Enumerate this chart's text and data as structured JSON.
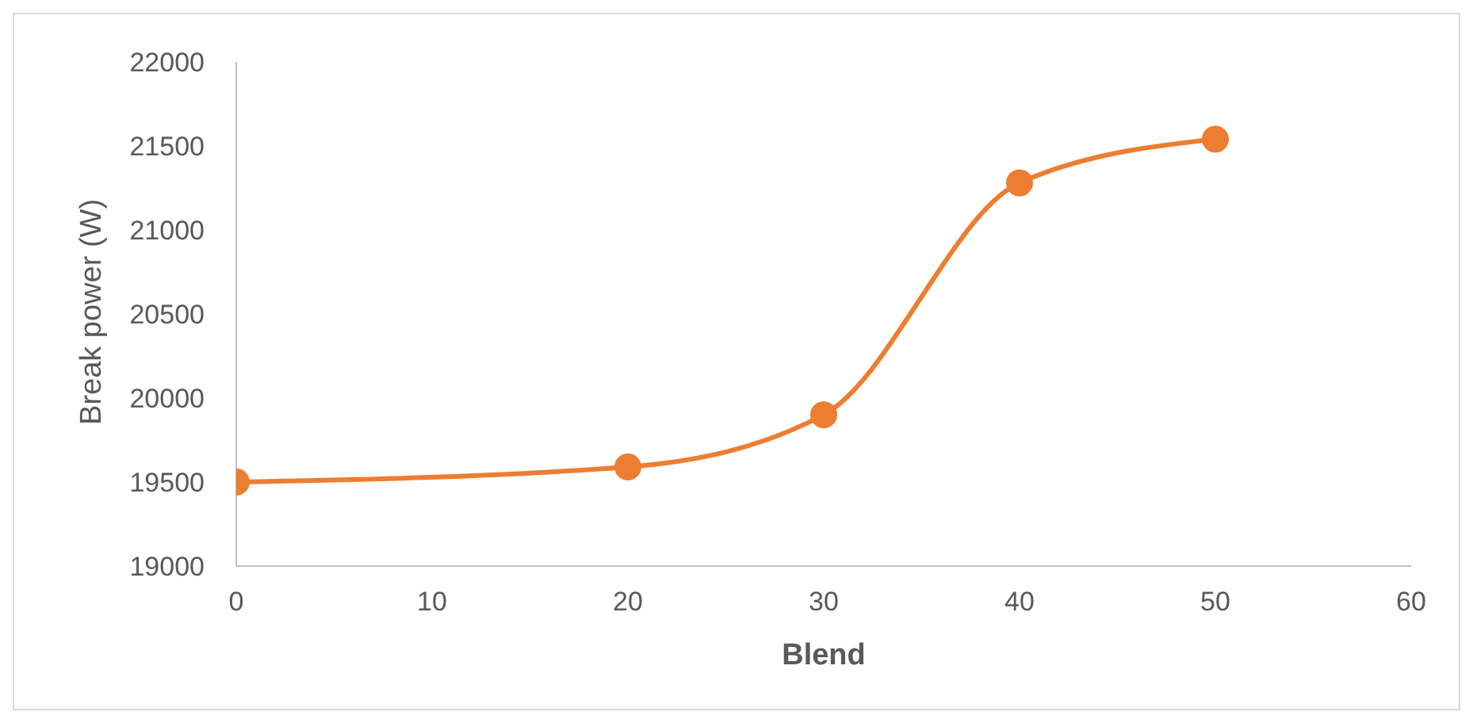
{
  "chart_data": {
    "type": "line",
    "xlabel": "Blend",
    "ylabel": "Break power (W)",
    "x": [
      0,
      20,
      30,
      40,
      50
    ],
    "series": [
      {
        "color": "#ed7d31",
        "values": [
          19500,
          19590,
          19900,
          21280,
          21540
        ]
      }
    ],
    "xlim": [
      0,
      60
    ],
    "xticks": [
      0,
      10,
      20,
      30,
      40,
      50,
      60
    ],
    "ylim": [
      19000,
      22000
    ],
    "yticks": [
      19000,
      19500,
      20000,
      20500,
      21000,
      21500,
      22000
    ],
    "grid": false,
    "legend": false,
    "marker": "circle",
    "line_style": "solid"
  }
}
